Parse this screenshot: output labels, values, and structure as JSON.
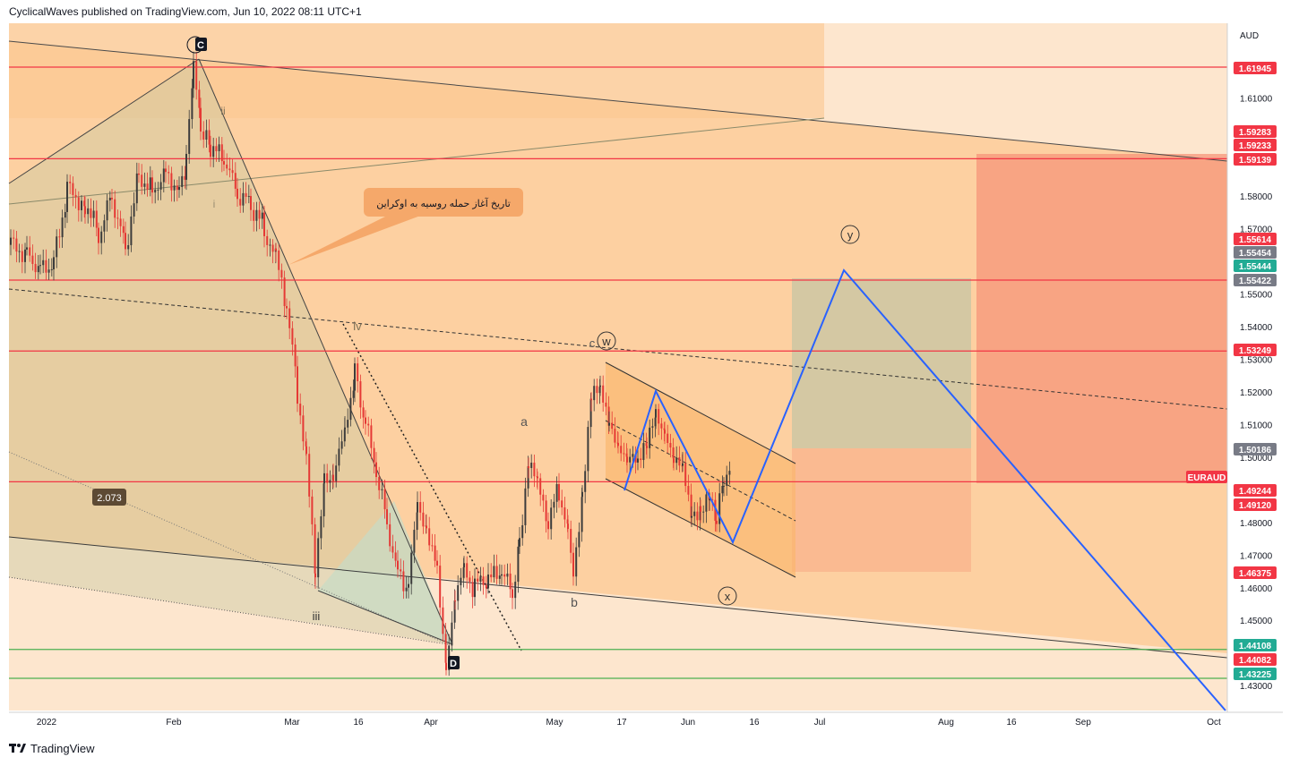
{
  "header": {
    "published": "CyclicalWaves published on TradingView.com, Jun 10, 2022 08:11 UTC+1"
  },
  "footer": {
    "brand": "TradingView",
    "logo_icon": "tradingview-logo-icon"
  },
  "chart_data": {
    "type": "candlestick",
    "symbol": "EURAUD",
    "currency": "AUD",
    "x_ticks": [
      "2022",
      "Feb",
      "Mar",
      "16",
      "Apr",
      "May",
      "17",
      "Jun",
      "16",
      "Jul",
      "Aug",
      "16",
      "Sep",
      "Oct"
    ],
    "y_ticks": [
      "1.61000",
      "1.58000",
      "1.57000",
      "1.55000",
      "1.54000",
      "1.53000",
      "1.52000",
      "1.51000",
      "1.50000",
      "1.48000",
      "1.47000",
      "1.46000",
      "1.45000",
      "1.43000"
    ],
    "price_labels": [
      {
        "text": "1.61945",
        "kind": "red"
      },
      {
        "text": "1.59283",
        "kind": "red"
      },
      {
        "text": "1.59233",
        "kind": "red"
      },
      {
        "text": "1.59139",
        "kind": "red"
      },
      {
        "text": "1.55614",
        "kind": "red"
      },
      {
        "text": "1.55454",
        "kind": "gray"
      },
      {
        "text": "1.55444",
        "kind": "green"
      },
      {
        "text": "1.55422",
        "kind": "gray"
      },
      {
        "text": "1.53249",
        "kind": "red"
      },
      {
        "text": "1.50186",
        "kind": "gray"
      },
      {
        "text": "EURAUD",
        "kind": "red"
      },
      {
        "text": "1.49244",
        "kind": "red"
      },
      {
        "text": "1.49120",
        "kind": "red"
      },
      {
        "text": "1.46375",
        "kind": "red"
      },
      {
        "text": "1.44108",
        "kind": "green"
      },
      {
        "text": "1.44082",
        "kind": "red"
      },
      {
        "text": "1.43225",
        "kind": "green"
      }
    ],
    "horizontal_levels": [
      {
        "price": 1.61945,
        "color": "#f23645"
      },
      {
        "price": 1.59139,
        "color": "#f23645"
      },
      {
        "price": 1.55422,
        "color": "#f23645"
      },
      {
        "price": 1.53249,
        "color": "#f23645"
      },
      {
        "price": 1.49244,
        "color": "#f23645"
      },
      {
        "price": 1.44108,
        "color": "#4caf50"
      },
      {
        "price": 1.43225,
        "color": "#4caf50"
      }
    ],
    "wave_labels": [
      "C",
      "ii",
      "i",
      "iv",
      "iii",
      "D",
      "a",
      "b",
      "c",
      "w",
      "x",
      "y"
    ],
    "annotation": "تاریخ آغاز حمله روسیه به اوکراین",
    "ratio_badge": "2.073",
    "colors": {
      "background_band": "#fbd9b0",
      "blue_projection": "#2962ff",
      "candle_down": "#e53935",
      "candle_up": "#3c3c3c"
    }
  }
}
